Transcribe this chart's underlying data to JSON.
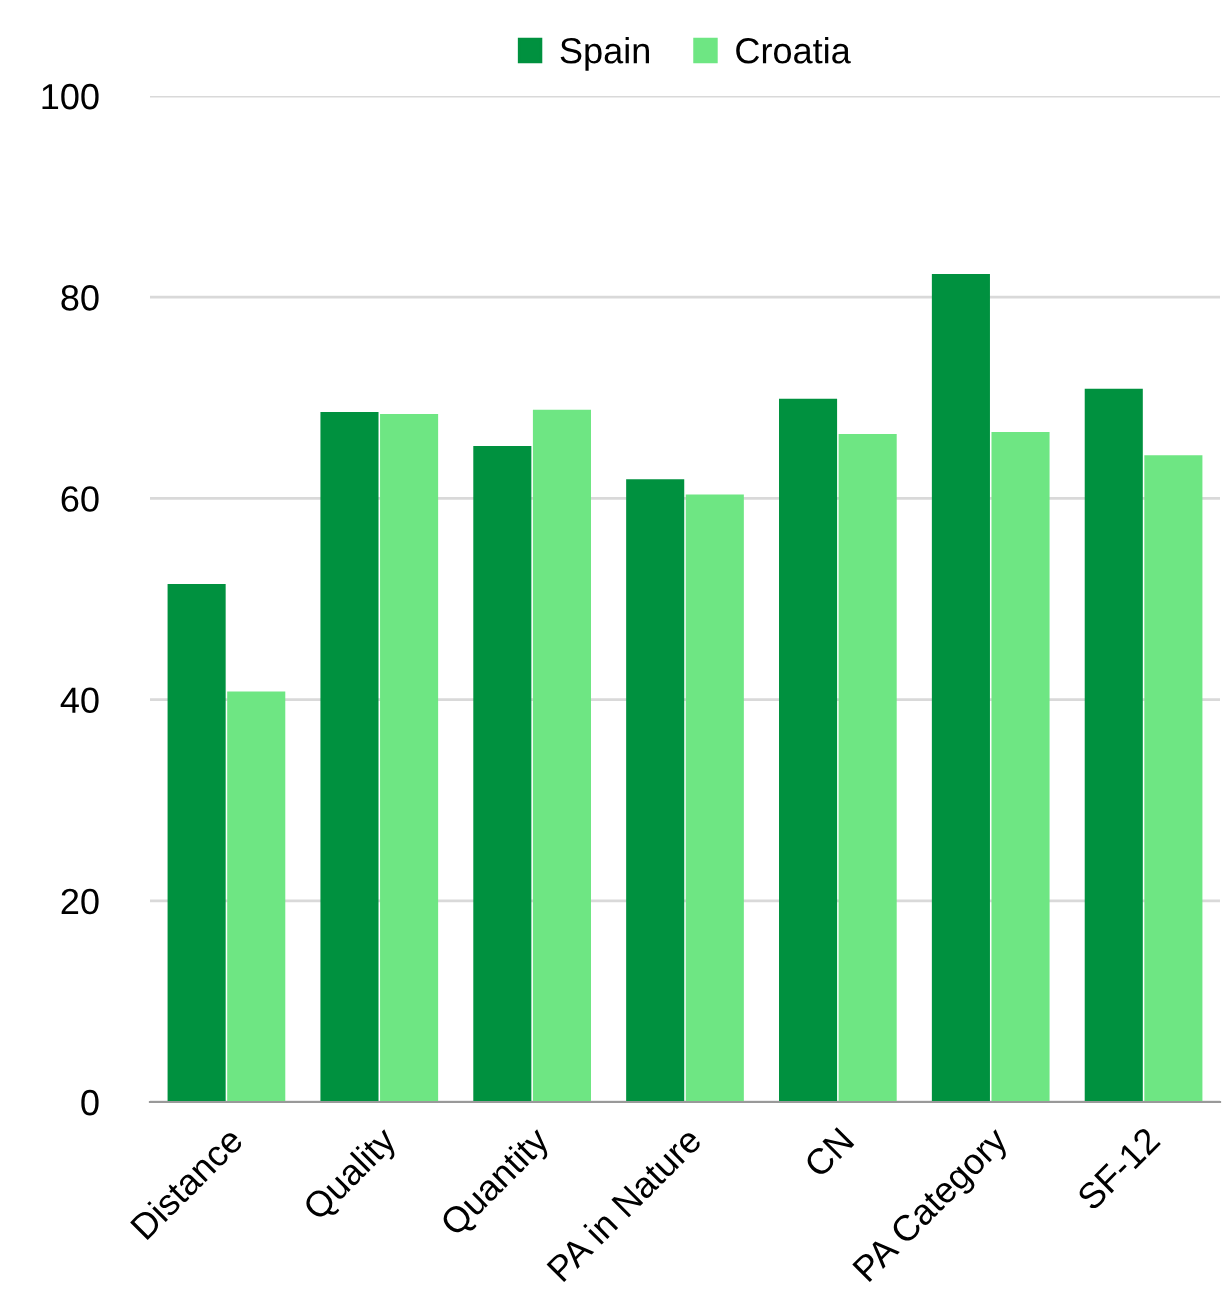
{
  "chart_data": {
    "type": "bar",
    "categories": [
      "Distance",
      "Quality",
      "Quantity",
      "PA in Nature",
      "CN",
      "PA Category",
      "SF-12"
    ],
    "series": [
      {
        "name": "Spain",
        "color": "#00913f",
        "values": [
          51.5,
          68.6,
          65.2,
          61.9,
          69.9,
          82.3,
          70.9
        ]
      },
      {
        "name": "Croatia",
        "color": "#6ee683",
        "values": [
          40.8,
          68.4,
          68.8,
          60.4,
          66.4,
          66.6,
          64.3
        ]
      }
    ],
    "ylim": [
      0,
      100
    ],
    "yticks": [
      0,
      20,
      40,
      60,
      80,
      100
    ],
    "grid": "y",
    "legend": "top"
  }
}
